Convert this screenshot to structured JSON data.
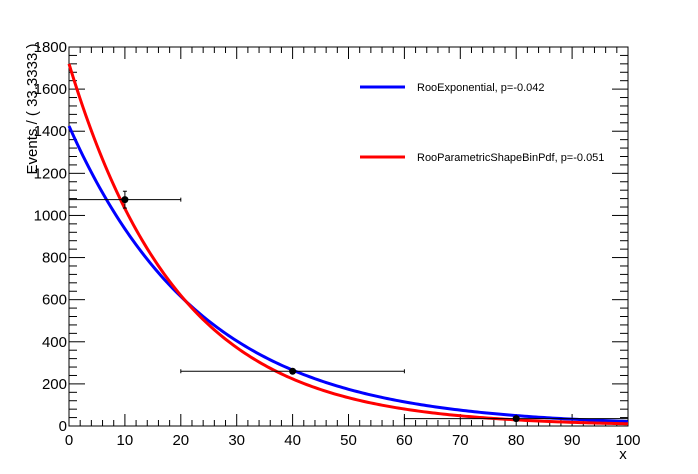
{
  "chart_data": {
    "type": "line",
    "title": "",
    "xlabel": "x",
    "ylabel": "Events / ( 33.3333 )",
    "xlim": [
      0,
      100
    ],
    "ylim": [
      0,
      1800
    ],
    "xticks": [
      0,
      10,
      20,
      30,
      40,
      50,
      60,
      70,
      80,
      90,
      100
    ],
    "yticks": [
      0,
      200,
      400,
      600,
      800,
      1000,
      1200,
      1400,
      1600,
      1800
    ],
    "grid": false,
    "legend_position": "top-right",
    "data_points": [
      {
        "x": 10,
        "y": 1075,
        "x_low": 0,
        "x_high": 20,
        "y_err": 40
      },
      {
        "x": 40,
        "y": 260,
        "x_low": 20,
        "x_high": 60,
        "y_err": 10
      },
      {
        "x": 80,
        "y": 35,
        "x_low": 60,
        "x_high": 100,
        "y_err": 5
      }
    ],
    "series": [
      {
        "name": "RooExponential, p=-0.042",
        "color": "#0000ff",
        "amplitude": 1425,
        "slope": -0.042
      },
      {
        "name": "RooParametricShapeBinPdf, p=-0.051",
        "color": "#ff0000",
        "amplitude": 1720,
        "slope": -0.051
      }
    ]
  }
}
